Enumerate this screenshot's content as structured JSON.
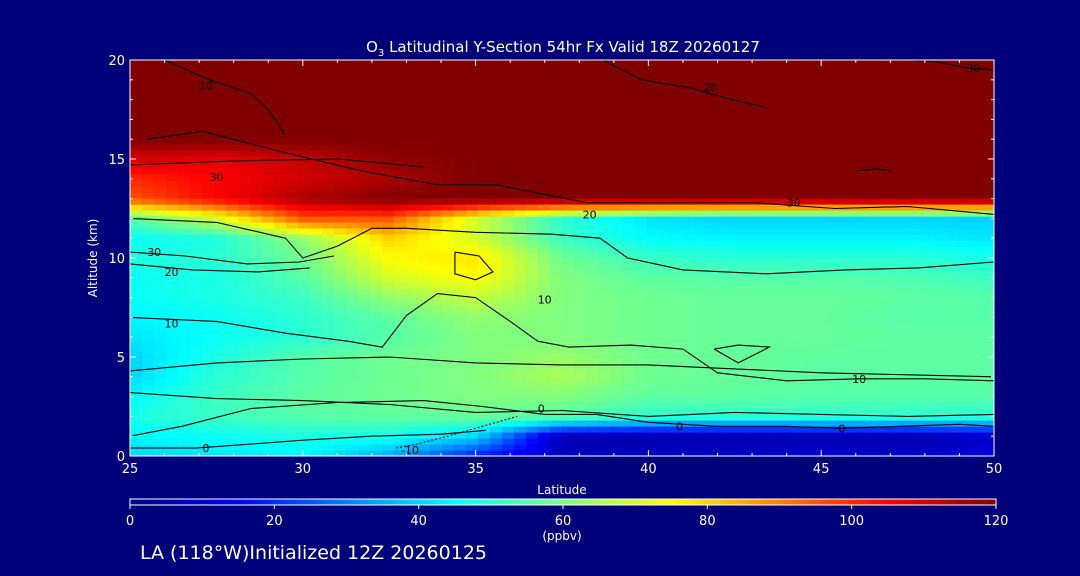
{
  "chart_data": {
    "type": "heatmap",
    "title": "O3 Latitudinal Y-Section 54hr  Fx Valid 18Z 20260127",
    "xlabel": "Latitude",
    "ylabel": "Altitude (km)",
    "xlim": [
      25,
      50
    ],
    "ylim": [
      0,
      20
    ],
    "x_ticks": [
      25,
      30,
      35,
      40,
      45,
      50
    ],
    "y_ticks": [
      0,
      5,
      10,
      15,
      20
    ],
    "colorbar": {
      "label": "(ppbv)",
      "range": [
        0,
        120
      ],
      "ticks": [
        0,
        20,
        40,
        60,
        80,
        100,
        120
      ],
      "colors": [
        "#000080",
        "#0000ff",
        "#0080ff",
        "#00ffff",
        "#80ff80",
        "#ffff00",
        "#ff8000",
        "#ff0000",
        "#800000"
      ]
    },
    "latitudes": [
      25,
      27.5,
      30,
      32.5,
      35,
      37.5,
      40,
      42.5,
      45,
      47.5,
      50
    ],
    "altitudes": [
      0,
      1,
      2,
      3,
      4,
      5,
      6,
      7,
      8,
      9,
      10,
      11,
      12,
      13,
      14,
      15,
      16,
      17,
      18,
      19,
      20
    ],
    "ozone_ppbv": [
      [
        40,
        42,
        44,
        35,
        18,
        8,
        8,
        8,
        10,
        8,
        12
      ],
      [
        44,
        46,
        48,
        47,
        40,
        5,
        5,
        5,
        5,
        5,
        8
      ],
      [
        48,
        52,
        55,
        56,
        57,
        55,
        50,
        50,
        50,
        50,
        50
      ],
      [
        45,
        52,
        56,
        58,
        60,
        60,
        56,
        56,
        55,
        55,
        55
      ],
      [
        40,
        50,
        55,
        58,
        60,
        65,
        58,
        57,
        56,
        56,
        56
      ],
      [
        40,
        48,
        55,
        58,
        60,
        63,
        58,
        57,
        56,
        56,
        56
      ],
      [
        42,
        46,
        50,
        55,
        60,
        60,
        58,
        57,
        57,
        56,
        56
      ],
      [
        44,
        46,
        50,
        56,
        62,
        60,
        58,
        57,
        57,
        55,
        55
      ],
      [
        46,
        48,
        52,
        62,
        68,
        60,
        58,
        57,
        57,
        56,
        55
      ],
      [
        46,
        48,
        55,
        70,
        75,
        60,
        56,
        55,
        55,
        54,
        52
      ],
      [
        48,
        50,
        58,
        75,
        78,
        58,
        52,
        50,
        50,
        50,
        48
      ],
      [
        46,
        48,
        62,
        80,
        70,
        52,
        45,
        44,
        44,
        44,
        42
      ],
      [
        55,
        70,
        95,
        95,
        70,
        50,
        42,
        40,
        40,
        40,
        40
      ],
      [
        95,
        105,
        115,
        120,
        120,
        120,
        120,
        120,
        120,
        120,
        120
      ],
      [
        100,
        105,
        110,
        115,
        120,
        120,
        120,
        120,
        120,
        120,
        120
      ],
      [
        110,
        108,
        112,
        118,
        120,
        120,
        120,
        120,
        120,
        120,
        120
      ],
      [
        120,
        120,
        120,
        120,
        120,
        120,
        120,
        120,
        120,
        120,
        120
      ],
      [
        120,
        120,
        120,
        120,
        120,
        120,
        120,
        120,
        120,
        120,
        120
      ],
      [
        120,
        120,
        120,
        120,
        120,
        120,
        120,
        120,
        120,
        120,
        120
      ],
      [
        120,
        120,
        120,
        120,
        120,
        120,
        120,
        120,
        120,
        120,
        120
      ],
      [
        120,
        120,
        120,
        120,
        120,
        120,
        120,
        120,
        120,
        120,
        120
      ]
    ],
    "contour_labels": [
      {
        "text": "10",
        "lat": 27.2,
        "alt": 18.7
      },
      {
        "text": "20",
        "lat": 41.8,
        "alt": 18.6
      },
      {
        "text": "30",
        "lat": 49.4,
        "alt": 19.6
      },
      {
        "text": "30",
        "lat": 27.5,
        "alt": 14.1
      },
      {
        "text": "30",
        "lat": 44.2,
        "alt": 12.8
      },
      {
        "text": "20",
        "lat": 38.3,
        "alt": 12.2
      },
      {
        "text": "30",
        "lat": 25.7,
        "alt": 10.3
      },
      {
        "text": "20",
        "lat": 26.2,
        "alt": 9.3
      },
      {
        "text": "10",
        "lat": 37.0,
        "alt": 7.9
      },
      {
        "text": "10",
        "lat": 26.2,
        "alt": 6.7
      },
      {
        "text": "10",
        "lat": 46.1,
        "alt": 3.9
      },
      {
        "text": "0",
        "lat": 36.9,
        "alt": 2.4
      },
      {
        "text": "0",
        "lat": 40.9,
        "alt": 1.5
      },
      {
        "text": "0",
        "lat": 45.6,
        "alt": 1.4
      },
      {
        "text": "0",
        "lat": 27.2,
        "alt": 0.4
      },
      {
        "text": "-10",
        "lat": 33.1,
        "alt": 0.3
      }
    ],
    "contours": [
      {
        "level": 10,
        "points": [
          [
            26.0,
            20
          ],
          [
            27.3,
            19.0
          ],
          [
            28.5,
            18.3
          ],
          [
            29.0,
            17.5
          ],
          [
            29.5,
            16.2
          ]
        ]
      },
      {
        "level": 20,
        "points": [
          [
            38.7,
            20
          ],
          [
            39.8,
            19.0
          ],
          [
            41.2,
            18.6
          ],
          [
            42.4,
            18.0
          ],
          [
            43.4,
            17.6
          ]
        ]
      },
      {
        "level": 30,
        "points": [
          [
            47.6,
            20
          ],
          [
            48.4,
            19.9
          ],
          [
            49.2,
            19.6
          ],
          [
            50,
            19.5
          ]
        ]
      },
      {
        "level": 30,
        "points": [
          [
            25.5,
            16.0
          ],
          [
            27.1,
            16.4
          ],
          [
            29.3,
            15.4
          ],
          [
            31.7,
            14.4
          ],
          [
            33.9,
            13.7
          ],
          [
            35.6,
            13.7
          ],
          [
            38.2,
            12.8
          ],
          [
            40.6,
            12.8
          ],
          [
            43.0,
            12.8
          ],
          [
            45.4,
            12.5
          ],
          [
            47.5,
            12.6
          ],
          [
            50,
            12.2
          ]
        ]
      },
      {
        "level": 25,
        "points": [
          [
            25,
            14.7
          ],
          [
            28,
            14.9
          ],
          [
            31,
            15.0
          ],
          [
            33.5,
            14.6
          ]
        ]
      },
      {
        "level": 20,
        "points": [
          [
            25,
            12.0
          ],
          [
            27.5,
            11.8
          ],
          [
            29.5,
            11.0
          ],
          [
            30.0,
            10.0
          ],
          [
            31.0,
            10.6
          ],
          [
            32.0,
            11.5
          ],
          [
            33.0,
            11.5
          ],
          [
            35.0,
            11.3
          ],
          [
            37.2,
            11.2
          ],
          [
            38.6,
            11.0
          ],
          [
            39.4,
            10.0
          ],
          [
            41.0,
            9.4
          ],
          [
            43.4,
            9.2
          ],
          [
            45.7,
            9.4
          ],
          [
            47.8,
            9.5
          ],
          [
            50,
            9.8
          ]
        ]
      },
      {
        "level": 30,
        "points": [
          [
            25,
            10.3
          ],
          [
            26.6,
            10.1
          ],
          [
            28.4,
            9.7
          ],
          [
            29.9,
            9.8
          ],
          [
            30.9,
            10.1
          ]
        ]
      },
      {
        "level": 20,
        "points": [
          [
            25,
            9.7
          ],
          [
            26.8,
            9.4
          ],
          [
            28.7,
            9.3
          ],
          [
            30.2,
            9.5
          ]
        ]
      },
      {
        "level": 20,
        "points": [
          [
            34.4,
            10.3
          ],
          [
            35.1,
            10.1
          ],
          [
            35.5,
            9.3
          ],
          [
            35.0,
            8.9
          ],
          [
            34.4,
            9.2
          ],
          [
            34.4,
            10.3
          ]
        ]
      },
      {
        "level": 10,
        "points": [
          [
            25,
            7.0
          ],
          [
            27.5,
            6.8
          ],
          [
            29.5,
            6.2
          ],
          [
            31.3,
            5.8
          ],
          [
            32.3,
            5.5
          ],
          [
            33.0,
            7.1
          ],
          [
            33.9,
            8.2
          ],
          [
            35.0,
            8.0
          ],
          [
            36.0,
            6.8
          ],
          [
            36.8,
            5.8
          ],
          [
            37.7,
            5.5
          ],
          [
            39.5,
            5.6
          ],
          [
            41.0,
            5.4
          ],
          [
            42.0,
            4.2
          ],
          [
            44.0,
            3.8
          ],
          [
            46.1,
            3.9
          ],
          [
            48.0,
            3.9
          ],
          [
            50,
            3.8
          ]
        ]
      },
      {
        "level": 10,
        "points": [
          [
            41.9,
            5.4
          ],
          [
            42.6,
            5.6
          ],
          [
            43.5,
            5.5
          ],
          [
            42.6,
            4.7
          ],
          [
            41.9,
            5.4
          ]
        ]
      },
      {
        "level": 5,
        "points": [
          [
            25,
            4.3
          ],
          [
            27.5,
            4.7
          ],
          [
            30.0,
            4.9
          ],
          [
            32.5,
            5.0
          ],
          [
            35.0,
            4.7
          ],
          [
            37.5,
            4.6
          ],
          [
            40.0,
            4.6
          ],
          [
            42.5,
            4.4
          ],
          [
            45.0,
            4.2
          ],
          [
            47.5,
            4.1
          ],
          [
            50,
            4.0
          ]
        ]
      },
      {
        "level": 0,
        "points": [
          [
            25,
            1.0
          ],
          [
            26.5,
            1.5
          ],
          [
            28.5,
            2.4
          ],
          [
            31.0,
            2.7
          ],
          [
            33.5,
            2.8
          ],
          [
            35.2,
            2.5
          ],
          [
            37.0,
            2.1
          ],
          [
            38.5,
            2.1
          ],
          [
            40.0,
            1.7
          ],
          [
            42.0,
            1.5
          ],
          [
            44.0,
            1.5
          ],
          [
            45.6,
            1.4
          ],
          [
            47.3,
            1.5
          ],
          [
            49.0,
            1.6
          ],
          [
            50,
            1.5
          ]
        ]
      },
      {
        "level": 5,
        "points": [
          [
            25,
            3.2
          ],
          [
            27.5,
            2.9
          ],
          [
            30.0,
            2.8
          ],
          [
            32.5,
            2.6
          ],
          [
            35.0,
            2.2
          ],
          [
            37.5,
            2.3
          ],
          [
            40.0,
            2.0
          ],
          [
            42.5,
            2.2
          ],
          [
            45.0,
            2.1
          ],
          [
            47.5,
            2.0
          ],
          [
            50,
            2.1
          ]
        ]
      },
      {
        "level": 0,
        "points": [
          [
            25,
            0.4
          ],
          [
            26.9,
            0.4
          ],
          [
            28.5,
            0.6
          ],
          [
            30.0,
            0.8
          ],
          [
            32.0,
            1.0
          ],
          [
            34.0,
            1.1
          ],
          [
            35.3,
            1.3
          ]
        ]
      },
      {
        "level": -10,
        "points": [
          [
            32.7,
            0.4
          ],
          [
            33.3,
            0.6
          ],
          [
            34.2,
            1.0
          ],
          [
            35.2,
            1.5
          ],
          [
            36.2,
            2.0
          ]
        ]
      },
      {
        "level": 0,
        "points": [
          [
            46.0,
            14.4
          ],
          [
            46.6,
            14.5
          ],
          [
            47.0,
            14.4
          ]
        ]
      }
    ]
  },
  "title": {
    "main": "O",
    "sub": "3",
    "rest": " Latitudinal Y-Section 54hr  Fx Valid 18Z 20260127"
  },
  "xlabel": "Latitude",
  "ylabel": "Altitude (km)",
  "x_tick_labels": [
    "25",
    "30",
    "35",
    "40",
    "45",
    "50"
  ],
  "y_tick_labels": [
    "0",
    "5",
    "10",
    "15",
    "20"
  ],
  "colorbar_tick_labels": [
    "0",
    "20",
    "40",
    "60",
    "80",
    "100",
    "120"
  ],
  "colorbar_unit": "(ppbv)",
  "footer_label": "LA (118°W)Initialized 12Z 20260125"
}
